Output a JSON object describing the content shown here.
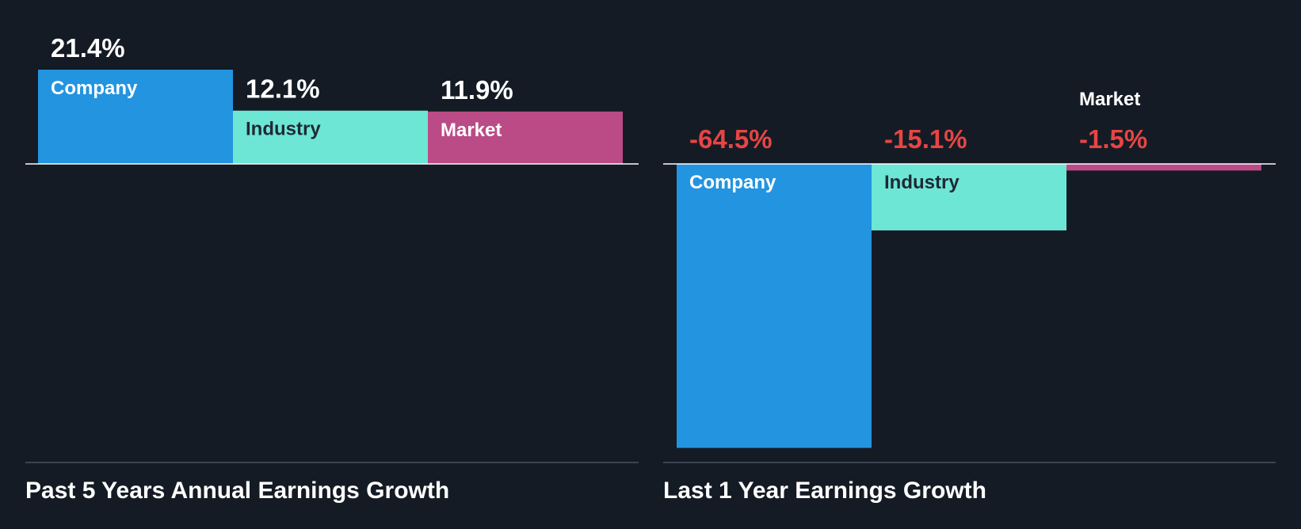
{
  "chart_data": [
    {
      "type": "bar",
      "title": "Past 5 Years Annual Earnings Growth",
      "categories": [
        "Company",
        "Industry",
        "Market"
      ],
      "values": [
        21.4,
        12.1,
        11.9
      ],
      "value_labels": [
        "21.4%",
        "12.1%",
        "11.9%"
      ],
      "unit": "%",
      "ylim": [
        -66,
        22
      ],
      "colors": [
        "#2394e0",
        "#6de6d6",
        "#bb4b87"
      ],
      "label_colors": [
        "#ffffff",
        "#1f2933",
        "#ffffff"
      ],
      "value_label_color": "#ffffff"
    },
    {
      "type": "bar",
      "title": "Last 1 Year Earnings Growth",
      "categories": [
        "Company",
        "Industry",
        "Market"
      ],
      "values": [
        -64.5,
        -15.1,
        -1.5
      ],
      "value_labels": [
        "-64.5%",
        "-15.1%",
        "-1.5%"
      ],
      "unit": "%",
      "ylim": [
        -66,
        22
      ],
      "colors": [
        "#2394e0",
        "#6de6d6",
        "#bb4b87"
      ],
      "label_colors": [
        "#ffffff",
        "#1f2933",
        "#ffffff"
      ],
      "value_label_color": "#e64545"
    }
  ],
  "theme": {
    "background": "#151b24",
    "zero_line": "#ffffff",
    "base_line": "#4a5260",
    "title_color": "#ffffff"
  }
}
